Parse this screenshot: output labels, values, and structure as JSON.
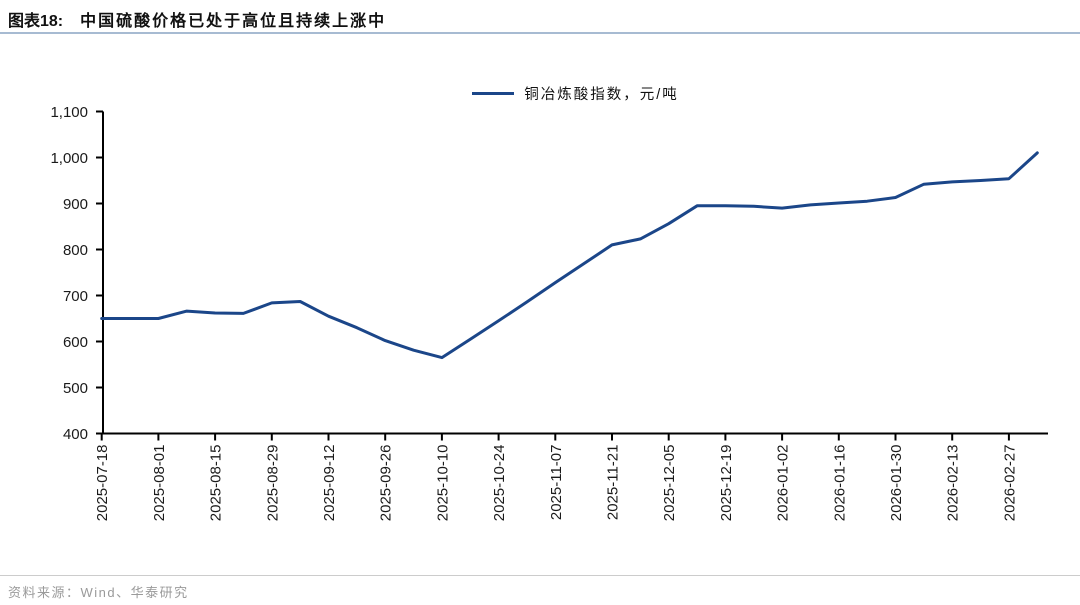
{
  "page": {
    "title_prefix": "图表18:",
    "title_text": "中国硫酸价格已处于高位且持续上涨中",
    "source_text": "资料来源：Wind、华泰研究"
  },
  "colors": {
    "line": "#1B4689",
    "axis": "#000000",
    "tick_label": "#1a1a1a",
    "title_underline": "#A7BBD2",
    "source_text": "#9a9a9a"
  },
  "chart_data": {
    "type": "line",
    "title": "中国硫酸价格已处于高位且持续上涨中",
    "legend": [
      "铜冶炼酸指数，元/吨"
    ],
    "legend_position": "top-center",
    "grid": false,
    "ylim": [
      400,
      1100
    ],
    "ytick_step": 100,
    "xlabel": "",
    "ylabel": "",
    "x": [
      "2025-07-18",
      "2025-07-25",
      "2025-08-01",
      "2025-08-08",
      "2025-08-15",
      "2025-08-22",
      "2025-08-29",
      "2025-09-05",
      "2025-09-12",
      "2025-09-19",
      "2025-09-26",
      "2025-10-03",
      "2025-10-10",
      "2025-10-17",
      "2025-10-24",
      "2025-10-31",
      "2025-11-07",
      "2025-11-14",
      "2025-11-21",
      "2025-11-28",
      "2025-12-05",
      "2025-12-12",
      "2025-12-19",
      "2025-12-26",
      "2026-01-02",
      "2026-01-09",
      "2026-01-16",
      "2026-01-23",
      "2026-01-30",
      "2026-02-06",
      "2026-02-13",
      "2026-02-20",
      "2026-02-27",
      "2026-03-06"
    ],
    "x_tick_labels": [
      "2025-07-18",
      "2025-08-01",
      "2025-08-15",
      "2025-08-29",
      "2025-09-12",
      "2025-09-26",
      "2025-10-10",
      "2025-10-24",
      "2025-11-07",
      "2025-11-21",
      "2025-12-05",
      "2025-12-19",
      "2026-01-02",
      "2026-01-16",
      "2026-01-30",
      "2026-02-13",
      "2026-02-27"
    ],
    "series": [
      {
        "name": "铜冶炼酸指数，元/吨",
        "values": [
          650,
          650,
          650,
          666,
          662,
          661,
          684,
          687,
          655,
          630,
          602,
          581,
          565,
          605,
          645,
          686,
          728,
          769,
          810,
          823,
          856,
          895,
          895,
          894,
          890,
          897,
          901,
          905,
          913,
          942,
          947,
          950,
          954,
          1010
        ]
      }
    ]
  }
}
